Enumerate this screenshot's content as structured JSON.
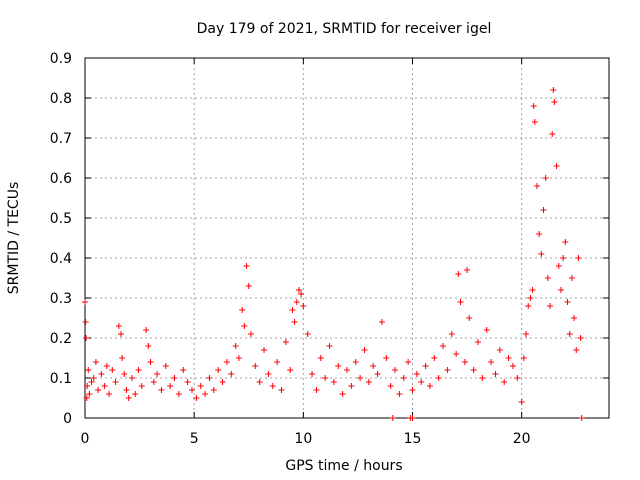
{
  "chart_data": {
    "type": "scatter",
    "title": "Day 179 of 2021, SRMTID for receiver igel",
    "xlabel": "GPS time / hours",
    "ylabel": "SRMTID / TECUs",
    "xlim": [
      0,
      24
    ],
    "ylim": [
      0,
      0.9
    ],
    "xticks": [
      0,
      5,
      10,
      15,
      20
    ],
    "xtick_labels": [
      "0",
      "5",
      "10",
      "15",
      "20"
    ],
    "yticks": [
      0,
      0.1,
      0.2,
      0.3,
      0.4,
      0.5,
      0.6,
      0.7,
      0.8,
      0.9
    ],
    "ytick_labels": [
      "0",
      "0.1",
      "0.2",
      "0.3",
      "0.4",
      "0.5",
      "0.6",
      "0.7",
      "0.8",
      "0.9"
    ],
    "grid": true,
    "marker": "plus",
    "marker_color": "#ff0000",
    "series": [
      {
        "name": "SRMTID",
        "x": [
          0.0,
          0.03,
          0.05,
          0.08,
          0.1,
          0.15,
          0.2,
          0.3,
          0.4,
          0.5,
          0.6,
          0.75,
          0.9,
          1.0,
          1.1,
          1.25,
          1.4,
          1.55,
          1.65,
          1.7,
          1.8,
          1.9,
          2.0,
          2.15,
          2.3,
          2.45,
          2.6,
          2.8,
          2.9,
          3.0,
          3.15,
          3.3,
          3.5,
          3.7,
          3.9,
          4.1,
          4.3,
          4.5,
          4.7,
          4.9,
          5.1,
          5.3,
          5.5,
          5.7,
          5.9,
          6.1,
          6.3,
          6.5,
          6.7,
          6.9,
          7.05,
          7.2,
          7.3,
          7.4,
          7.5,
          7.6,
          7.8,
          8.0,
          8.2,
          8.4,
          8.6,
          8.8,
          9.0,
          9.2,
          9.4,
          9.5,
          9.6,
          9.7,
          9.8,
          9.9,
          10.0,
          10.2,
          10.4,
          10.6,
          10.8,
          11.0,
          11.2,
          11.4,
          11.6,
          11.8,
          12.0,
          12.2,
          12.4,
          12.6,
          12.8,
          13.0,
          13.2,
          13.4,
          13.6,
          13.8,
          14.0,
          14.2,
          14.4,
          14.6,
          14.8,
          15.0,
          15.2,
          15.4,
          15.6,
          15.8,
          16.0,
          16.2,
          16.4,
          16.6,
          16.8,
          17.0,
          17.1,
          17.2,
          17.4,
          17.5,
          17.6,
          17.8,
          18.0,
          18.2,
          18.4,
          18.6,
          18.8,
          19.0,
          19.2,
          19.4,
          19.6,
          19.8,
          20.0,
          20.1,
          20.2,
          20.3,
          20.4,
          20.5,
          20.55,
          20.6,
          20.7,
          20.8,
          20.9,
          21.0,
          21.1,
          21.2,
          21.3,
          21.4,
          21.45,
          21.5,
          21.6,
          21.7,
          21.8,
          21.9,
          22.0,
          22.1,
          22.2,
          22.3,
          22.4,
          22.5,
          22.6,
          22.7,
          14.1,
          14.9,
          15.0,
          22.75
        ],
        "y": [
          0.29,
          0.24,
          0.2,
          0.05,
          0.08,
          0.12,
          0.06,
          0.09,
          0.1,
          0.14,
          0.07,
          0.11,
          0.08,
          0.13,
          0.06,
          0.12,
          0.09,
          0.23,
          0.21,
          0.15,
          0.11,
          0.07,
          0.05,
          0.1,
          0.06,
          0.12,
          0.08,
          0.22,
          0.18,
          0.14,
          0.09,
          0.11,
          0.07,
          0.13,
          0.08,
          0.1,
          0.06,
          0.12,
          0.09,
          0.07,
          0.05,
          0.08,
          0.06,
          0.1,
          0.07,
          0.12,
          0.09,
          0.14,
          0.11,
          0.18,
          0.15,
          0.27,
          0.23,
          0.38,
          0.33,
          0.21,
          0.13,
          0.09,
          0.17,
          0.11,
          0.08,
          0.14,
          0.07,
          0.19,
          0.12,
          0.27,
          0.24,
          0.29,
          0.32,
          0.31,
          0.28,
          0.21,
          0.11,
          0.07,
          0.15,
          0.1,
          0.18,
          0.09,
          0.13,
          0.06,
          0.12,
          0.08,
          0.14,
          0.1,
          0.17,
          0.09,
          0.13,
          0.11,
          0.24,
          0.15,
          0.08,
          0.12,
          0.06,
          0.1,
          0.14,
          0.07,
          0.11,
          0.09,
          0.13,
          0.08,
          0.15,
          0.1,
          0.18,
          0.12,
          0.21,
          0.16,
          0.36,
          0.29,
          0.14,
          0.37,
          0.25,
          0.12,
          0.19,
          0.1,
          0.22,
          0.14,
          0.11,
          0.17,
          0.09,
          0.15,
          0.13,
          0.1,
          0.04,
          0.15,
          0.21,
          0.28,
          0.3,
          0.32,
          0.78,
          0.74,
          0.58,
          0.46,
          0.41,
          0.52,
          0.6,
          0.35,
          0.28,
          0.71,
          0.82,
          0.79,
          0.63,
          0.38,
          0.32,
          0.4,
          0.44,
          0.29,
          0.21,
          0.35,
          0.25,
          0.17,
          0.4,
          0.2,
          0.0,
          0.0,
          0.0,
          0.0
        ]
      }
    ]
  }
}
